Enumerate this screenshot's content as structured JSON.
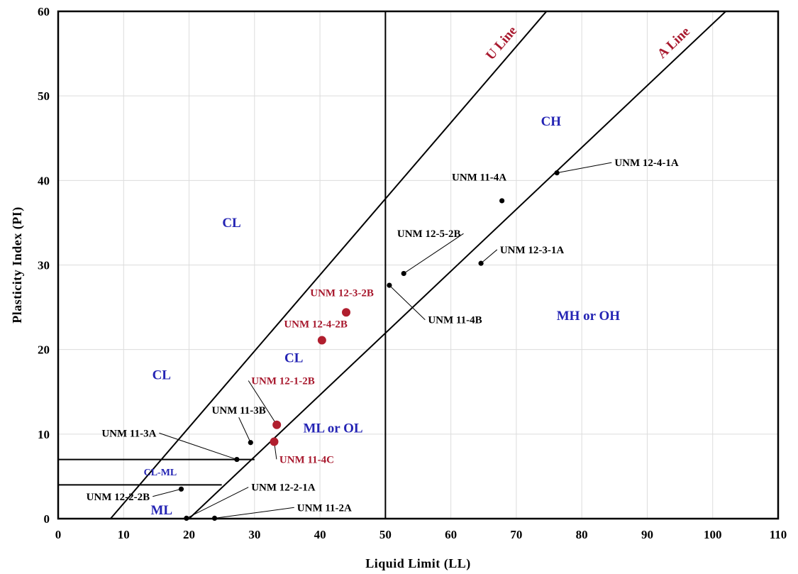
{
  "chart_data": {
    "type": "scatter",
    "title": "",
    "xlabel": "Liquid Limit (LL)",
    "ylabel": "Plasticity Index (PI)",
    "xlim": [
      0,
      110
    ],
    "ylim": [
      0,
      60
    ],
    "xticks": [
      0,
      10,
      20,
      30,
      40,
      50,
      60,
      70,
      80,
      90,
      100,
      110
    ],
    "yticks": [
      0,
      10,
      20,
      30,
      40,
      50,
      60
    ],
    "grid": true,
    "legend": "none",
    "colors": {
      "black_points": "#000000",
      "red_points": "#b01e2e",
      "zone_text": "#2424b4",
      "line_text": "#a8192e"
    },
    "reference_lines": [
      {
        "name": "U Line",
        "points": [
          [
            8,
            0
          ],
          [
            75.5,
            60.8
          ]
        ]
      },
      {
        "name": "A Line",
        "points": [
          [
            20,
            0
          ],
          [
            102,
            60
          ]
        ]
      },
      {
        "name": "",
        "points": [
          [
            50,
            0
          ],
          [
            50,
            60
          ]
        ]
      },
      {
        "name": "",
        "points": [
          [
            0,
            7
          ],
          [
            30,
            7
          ]
        ]
      },
      {
        "name": "",
        "points": [
          [
            0,
            4
          ],
          [
            25,
            4
          ]
        ]
      }
    ],
    "zones": [
      {
        "label": "CL",
        "x": 26.5,
        "y": 34.5,
        "size": 19
      },
      {
        "label": "CL",
        "x": 15.8,
        "y": 16.5,
        "size": 19
      },
      {
        "label": "CL",
        "x": 36,
        "y": 18.5,
        "size": 19
      },
      {
        "label": "CH",
        "x": 75.3,
        "y": 46.5,
        "size": 19
      },
      {
        "label": "MH or OH",
        "x": 81,
        "y": 23.5,
        "size": 19
      },
      {
        "label": "ML or OL",
        "x": 42,
        "y": 10.2,
        "size": 19
      },
      {
        "label": "CL-ML",
        "x": 15.6,
        "y": 5.1,
        "size": 14
      },
      {
        "label": "ML",
        "x": 15.8,
        "y": 0.5,
        "size": 19
      }
    ],
    "series": [
      {
        "color": "black",
        "points": [
          {
            "label": "UNM 12-4-1A",
            "x": 76.2,
            "y": 40.9,
            "lx": 85,
            "ly": 41.7,
            "anchor": "start",
            "leader": true
          },
          {
            "label": "UNM 11-4A",
            "x": 67.8,
            "y": 37.6,
            "lx": 68.5,
            "ly": 40,
            "anchor": "end",
            "leader": false
          },
          {
            "label": "UNM 12-5-2B",
            "x": 52.8,
            "y": 29,
            "lx": 61.5,
            "ly": 33.3,
            "anchor": "end",
            "leader": true
          },
          {
            "label": "UNM 12-3-1A",
            "x": 64.6,
            "y": 30.2,
            "lx": 67.5,
            "ly": 31.4,
            "anchor": "start",
            "leader": true
          },
          {
            "label": "UNM 11-4B",
            "x": 50.6,
            "y": 27.6,
            "lx": 56.5,
            "ly": 23.1,
            "anchor": "start",
            "leader": true
          },
          {
            "label": "UNM 11-3B",
            "x": 29.4,
            "y": 9.0,
            "lx": 27.6,
            "ly": 12.4,
            "anchor": "middle",
            "leader": true
          },
          {
            "label": "UNM 11-3A",
            "x": 27.3,
            "y": 7.0,
            "lx": 15,
            "ly": 9.7,
            "anchor": "end",
            "leader": true
          },
          {
            "label": "UNM 12-2-2B",
            "x": 18.8,
            "y": 3.5,
            "lx": 14,
            "ly": 2.2,
            "anchor": "end",
            "leader": true
          },
          {
            "label": "UNM 12-2-1A",
            "x": 19.6,
            "y": 0.05,
            "lx": 29.5,
            "ly": 3.3,
            "anchor": "start",
            "leader": true
          },
          {
            "label": "UNM 11-2A",
            "x": 23.9,
            "y": 0.05,
            "lx": 36.5,
            "ly": 0.9,
            "anchor": "start",
            "leader": true
          }
        ]
      },
      {
        "color": "red",
        "points": [
          {
            "label": "UNM 12-3-2B",
            "x": 44,
            "y": 24.4,
            "lx": 38.5,
            "ly": 26.3,
            "anchor": "start",
            "leader": false
          },
          {
            "label": "UNM 12-4-2B",
            "x": 40.3,
            "y": 21.1,
            "lx": 34.5,
            "ly": 22.6,
            "anchor": "start",
            "leader": false
          },
          {
            "label": "UNM 12-1-2B",
            "x": 33.4,
            "y": 11.1,
            "lx": 29.5,
            "ly": 15.9,
            "anchor": "start",
            "leader": true
          },
          {
            "label": "UNM 11-4C",
            "x": 33,
            "y": 9.1,
            "lx": 33.8,
            "ly": 6.6,
            "anchor": "start",
            "leader": true
          }
        ]
      }
    ]
  }
}
